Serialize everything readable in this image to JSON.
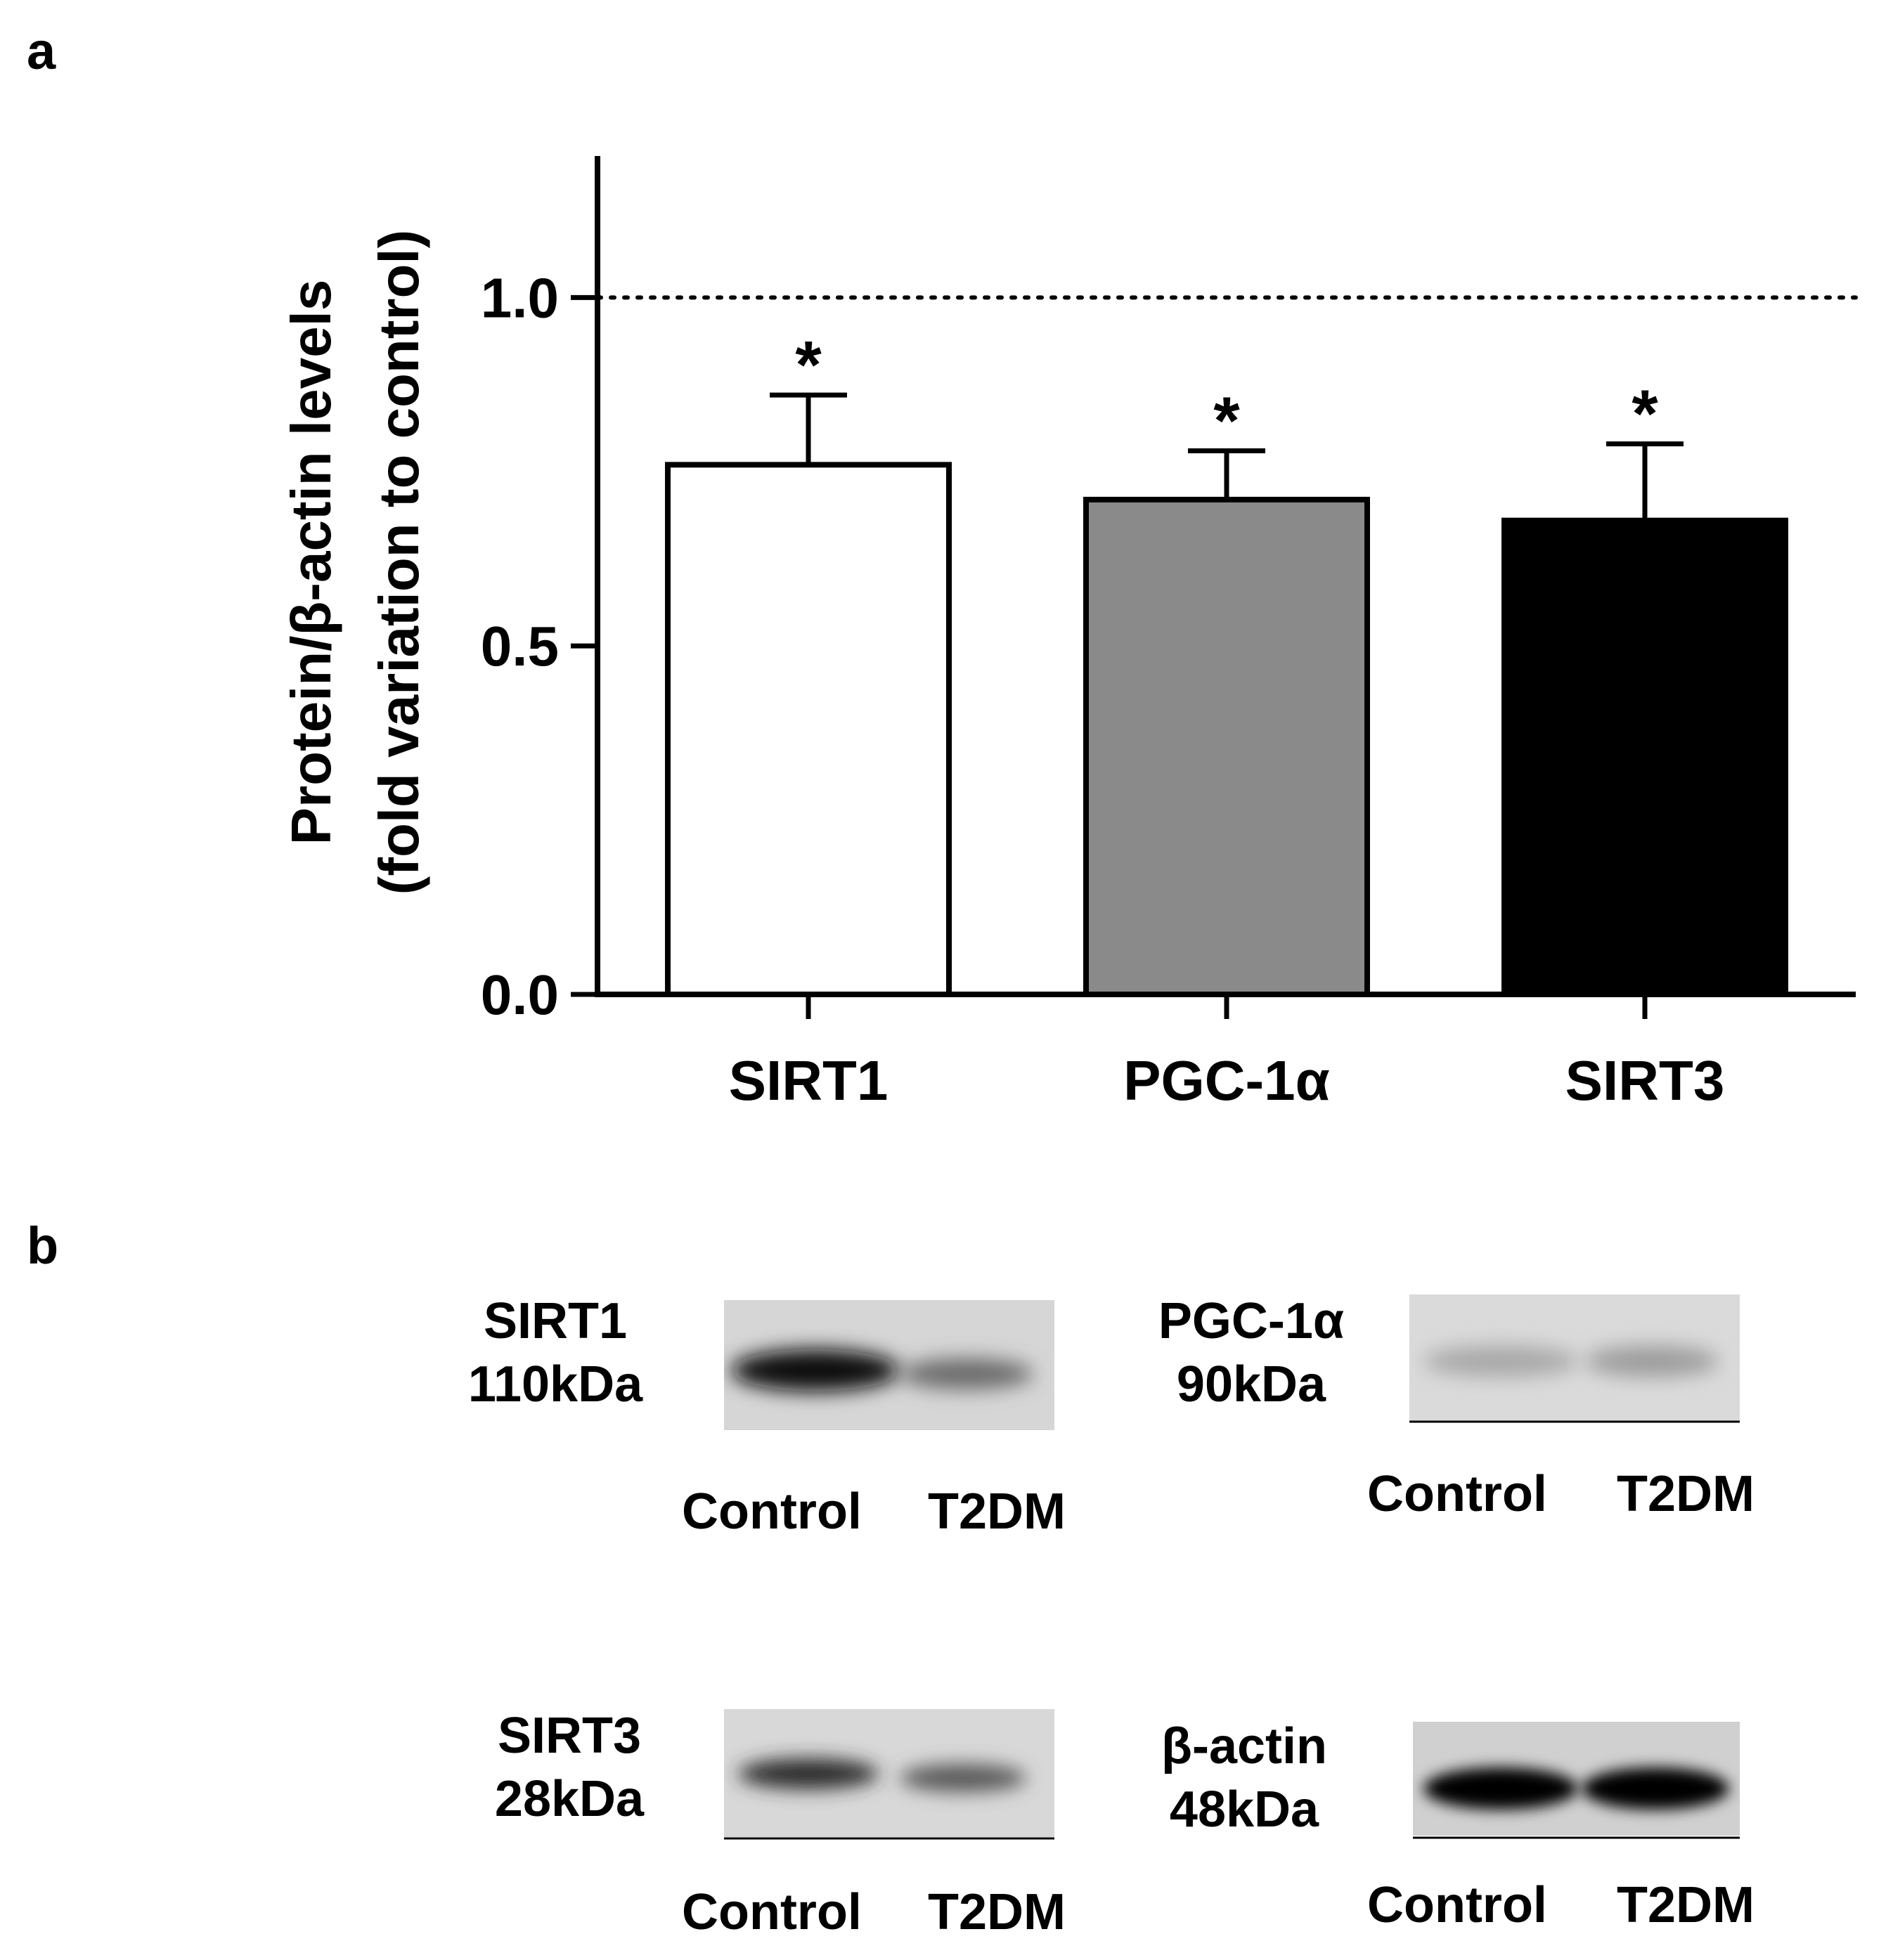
{
  "panel_a_label": "a",
  "panel_b_label": "b",
  "chart_data": {
    "type": "bar",
    "categories": [
      "SIRT1",
      "PGC-1α",
      "SIRT3"
    ],
    "values": [
      0.76,
      0.71,
      0.68
    ],
    "error": [
      0.1,
      0.07,
      0.11
    ],
    "significance": [
      "*",
      "*",
      "*"
    ],
    "bar_colors": [
      "#ffffff",
      "#8a8a8a",
      "#000000"
    ],
    "reference_line": 1.0,
    "ylabel_line1": "Protein/β-actin levels",
    "ylabel_line2": "(fold variation to control)",
    "yticks": [
      "0.0",
      "0.5",
      "1.0"
    ],
    "ylim": [
      0,
      1.2
    ]
  },
  "blots": [
    {
      "protein": "SIRT1",
      "size": "110kDa",
      "lane1": "Control",
      "lane2": "T2DM"
    },
    {
      "protein": "PGC-1α",
      "size": "90kDa",
      "lane1": "Control",
      "lane2": "T2DM"
    },
    {
      "protein": "SIRT3",
      "size": "28kDa",
      "lane1": "Control",
      "lane2": "T2DM"
    },
    {
      "protein": "β-actin",
      "size": "48kDa",
      "lane1": "Control",
      "lane2": "T2DM"
    }
  ]
}
